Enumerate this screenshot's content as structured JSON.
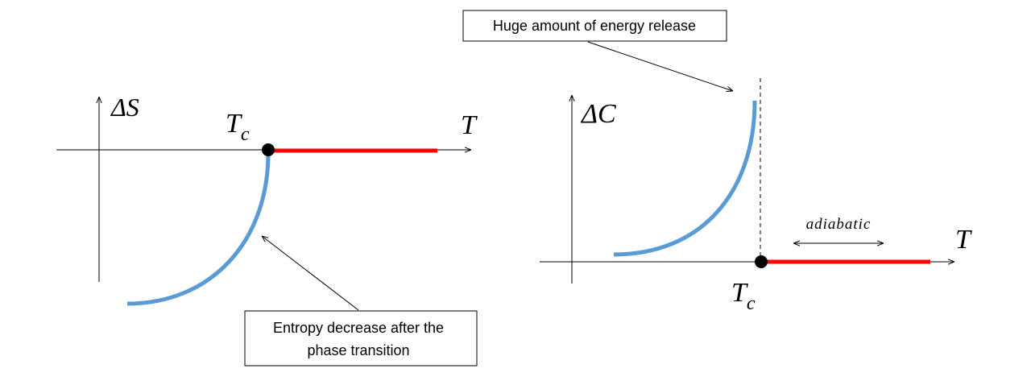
{
  "left": {
    "y_label": "ΔS",
    "x_label": "T",
    "point_label": {
      "main": "T",
      "sub": "c"
    },
    "callout": {
      "lines": [
        "Entropy decrease after the",
        "phase transition"
      ]
    }
  },
  "right": {
    "y_label": "ΔC",
    "x_label": "T",
    "point_label": {
      "main": "T",
      "sub": "c"
    },
    "region_label": "adiabatic",
    "callout": {
      "text": "Huge amount of energy release"
    }
  }
}
